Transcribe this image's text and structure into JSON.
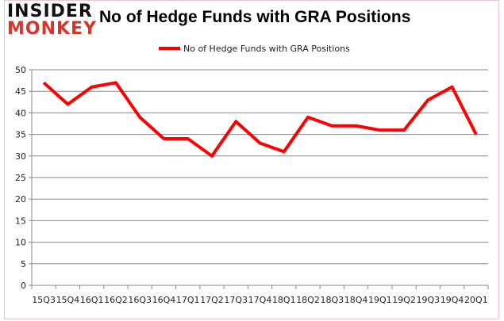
{
  "logo": {
    "line1": "INSIDER",
    "line2": "MONKEY"
  },
  "chart_data": {
    "type": "line",
    "title": "No of Hedge Funds with GRA Positions",
    "categories": [
      "15Q3",
      "15Q4",
      "16Q1",
      "16Q2",
      "16Q3",
      "16Q4",
      "17Q1",
      "17Q2",
      "17Q3",
      "17Q4",
      "18Q1",
      "18Q2",
      "18Q3",
      "18Q4",
      "19Q1",
      "19Q2",
      "19Q3",
      "19Q4",
      "20Q1"
    ],
    "series": [
      {
        "name": "No of Hedge Funds with GRA Positions",
        "values": [
          47,
          42,
          46,
          47,
          39,
          34,
          34,
          30,
          38,
          33,
          31,
          39,
          37,
          37,
          36,
          36,
          43,
          46,
          35
        ],
        "color": "#ff0000"
      }
    ],
    "ylim": [
      0,
      50
    ],
    "yticks": [
      0,
      5,
      10,
      15,
      20,
      25,
      30,
      35,
      40,
      45,
      50
    ],
    "grid": true,
    "legend": "top-center",
    "xlabel": "",
    "ylabel": ""
  }
}
